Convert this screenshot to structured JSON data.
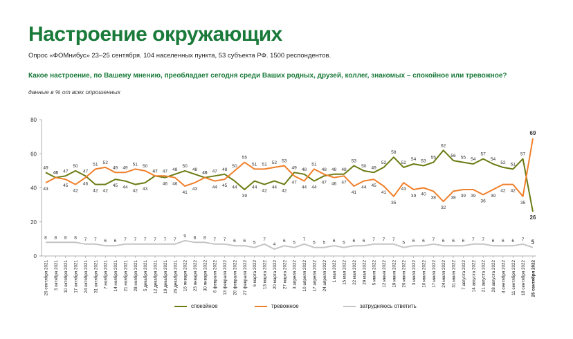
{
  "header": {
    "title": "Настроение окружающих",
    "subtitle": "Опрос «ФОМнибус» 23–25 сентября. 104 населенных пункта, 53 субъекта РФ. 1500 респондентов.",
    "question": "Какое настроение, по Вашему мнению, преобладает сегодня среди Ваших родных, друзей, коллег, знакомых – спокойное или тревожное?",
    "note": "данные в % от всех опрошенных"
  },
  "chart_data": {
    "type": "line",
    "ylim": [
      0,
      80
    ],
    "yticks": [
      0,
      20,
      40,
      60,
      80
    ],
    "grid": false,
    "legend_position": "bottom",
    "categories": [
      "26 сентября 2021",
      "3 октября 2021",
      "10 октября 2021",
      "17 октября 2021",
      "24 октября 2021",
      "31 октября 2021",
      "7 ноября 2021",
      "14 ноября 2021",
      "21 ноября 2021",
      "28 ноября 2021",
      "5 декабря 2021",
      "12 декабря 2021",
      "19 декабря 2021",
      "26 декабря 2021",
      "16 января 2022",
      "23 января 2022",
      "30 января 2022",
      "6 февраля 2022",
      "13 февраля 2022",
      "20 февраля 2022",
      "27 февраля 2022",
      "6 марта 2022",
      "13 марта 2022",
      "20 марта 2022",
      "27 марта 2022",
      "3 апреля 2022",
      "10 апреля 2022",
      "17 апреля 2022",
      "24 апреля 2022",
      "1 мая 2022",
      "15 мая 2022",
      "22 мая 2022",
      "29 мая 2022",
      "5 июня 2022",
      "12 июня 2022",
      "19 июня 2022",
      "26 июня 2022",
      "3 июля 2022",
      "10 июля 2022",
      "17 июля 2022",
      "24 июля 2022",
      "31 июля 2022",
      "7 августа 2022",
      "14 августа 2022",
      "21 августа 2022",
      "28 августа 2022",
      "4 сентября 2022",
      "11 сентября 2022",
      "18 сентября 2022",
      "25 сентября 2022"
    ],
    "series": [
      {
        "name": "спокойное",
        "color": "#6b7a12",
        "values": [
          49,
          46,
          47,
          50,
          47,
          42,
          42,
          45,
          44,
          42,
          43,
          47,
          46,
          48,
          50,
          48,
          46,
          47,
          48,
          44,
          39,
          44,
          42,
          44,
          42,
          49,
          48,
          44,
          47,
          48,
          48,
          53,
          50,
          49,
          52,
          58,
          52,
          54,
          53,
          55,
          62,
          56,
          55,
          54,
          57,
          54,
          52,
          51,
          57,
          26
        ]
      },
      {
        "name": "тревожное",
        "color": "#f07f2a",
        "values": [
          43,
          46,
          45,
          42,
          46,
          51,
          52,
          49,
          49,
          51,
          50,
          47,
          47,
          46,
          41,
          43,
          46,
          44,
          45,
          50,
          55,
          51,
          51,
          52,
          53,
          47,
          44,
          51,
          48,
          46,
          47,
          41,
          44,
          45,
          41,
          35,
          43,
          39,
          40,
          38,
          32,
          38,
          39,
          39,
          36,
          39,
          42,
          42,
          35,
          69
        ]
      },
      {
        "name": "затрудняюсь ответить",
        "color": "#c4c4c4",
        "values": [
          8,
          8,
          8,
          8,
          7,
          7,
          6,
          6,
          7,
          7,
          7,
          7,
          7,
          7,
          9,
          8,
          8,
          7,
          7,
          6,
          6,
          5,
          7,
          4,
          6,
          5,
          7,
          5,
          5,
          6,
          5,
          6,
          6,
          7,
          7,
          7,
          5,
          6,
          6,
          7,
          6,
          6,
          6,
          7,
          7,
          6,
          6,
          6,
          7,
          5
        ]
      }
    ]
  }
}
